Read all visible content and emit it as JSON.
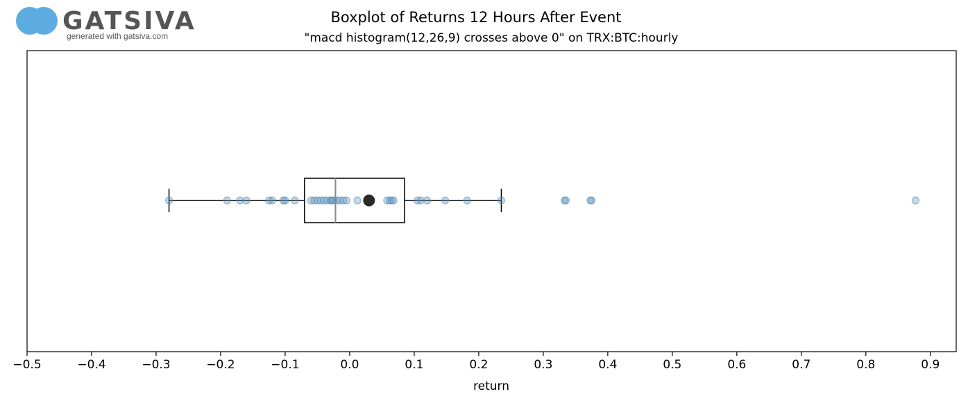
{
  "logo": {
    "name": "GATSIVA",
    "tagline": "generated with gatsiva.com",
    "color": "#5DADE2",
    "text_color": "#555555"
  },
  "chart_data": {
    "type": "boxplot",
    "title": "Boxplot of Returns 12 Hours After Event",
    "subtitle": "\"macd histogram(12,26,9) crosses above 0\" on TRX:BTC:hourly",
    "xlabel": "return",
    "ylabel": "",
    "xlim": [
      -0.5,
      0.94
    ],
    "xticks": [
      -0.5,
      -0.4,
      -0.3,
      -0.2,
      -0.1,
      0.0,
      0.1,
      0.2,
      0.3,
      0.4,
      0.5,
      0.6,
      0.7,
      0.8,
      0.9
    ],
    "xtick_labels": [
      "−0.5",
      "−0.4",
      "−0.3",
      "−0.2",
      "−0.1",
      "0.0",
      "0.1",
      "0.2",
      "0.3",
      "0.4",
      "0.5",
      "0.6",
      "0.7",
      "0.8",
      "0.9"
    ],
    "grid": false,
    "box": {
      "whisker_low": -0.28,
      "q1": -0.07,
      "median": -0.022,
      "q3": 0.085,
      "whisker_high": 0.235,
      "mean": 0.03
    },
    "points": [
      -0.28,
      -0.19,
      -0.17,
      -0.16,
      -0.125,
      -0.12,
      -0.103,
      -0.1,
      -0.085,
      -0.06,
      -0.055,
      -0.05,
      -0.045,
      -0.04,
      -0.035,
      -0.03,
      -0.028,
      -0.025,
      -0.02,
      -0.015,
      -0.01,
      -0.005,
      0.012,
      0.058,
      0.062,
      0.065,
      0.068,
      0.105,
      0.11,
      0.12,
      0.148,
      0.182,
      0.235,
      0.333,
      0.335,
      0.373,
      0.375,
      0.877
    ],
    "colors": {
      "points": "#5a8fb8",
      "box": "#000000",
      "median": "#888888",
      "mean": "#2b2b2b"
    }
  }
}
